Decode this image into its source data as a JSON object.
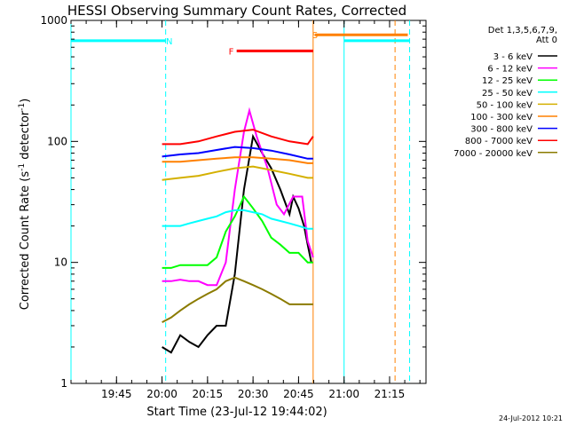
{
  "chart_data": {
    "type": "line",
    "title": "HESSI Observing Summary Count Rates, Corrected",
    "xlabel": "Start Time (23-Jul-12 19:44:02)",
    "ylabel": "Corrected Count Rate (s",
    "ylabel_sup": "-1",
    "ylabel_mid": " detector",
    "ylabel_sup2": "-1",
    "ylabel_end": ")",
    "x_unit": "minutes",
    "x_range": [
      19.5,
      21.45
    ],
    "xticks": [
      19.75,
      20.0,
      20.25,
      20.5,
      20.75,
      21.0,
      21.25
    ],
    "xtick_labels": [
      "19:45",
      "20:00",
      "20:15",
      "20:30",
      "20:45",
      "21:00",
      "21:15"
    ],
    "yscale": "log",
    "y_range": [
      1,
      1000
    ],
    "yticks": [
      1,
      10,
      100,
      1000
    ],
    "ytick_labels": [
      "1",
      "10",
      "100",
      "1000"
    ],
    "grid": false,
    "legend_header": [
      "Det 1,3,5,6,7,9,",
      "Att 0"
    ],
    "legend_position": "right",
    "series": [
      {
        "name": "3 - 6 keV",
        "color": "#000000",
        "points": [
          [
            20.0,
            2.0
          ],
          [
            20.05,
            1.8
          ],
          [
            20.1,
            2.5
          ],
          [
            20.15,
            2.2
          ],
          [
            20.2,
            2.0
          ],
          [
            20.25,
            2.5
          ],
          [
            20.3,
            3.0
          ],
          [
            20.35,
            3.0
          ],
          [
            20.4,
            8
          ],
          [
            20.45,
            40
          ],
          [
            20.5,
            110
          ],
          [
            20.55,
            80
          ],
          [
            20.6,
            60
          ],
          [
            20.65,
            40
          ],
          [
            20.7,
            25
          ],
          [
            20.72,
            35
          ],
          [
            20.75,
            28
          ],
          [
            20.78,
            20
          ],
          [
            20.8,
            14
          ],
          [
            20.82,
            10
          ]
        ]
      },
      {
        "name": "6 - 12 keV",
        "color": "#ff00ff",
        "points": [
          [
            20.0,
            7
          ],
          [
            20.05,
            7
          ],
          [
            20.1,
            7.2
          ],
          [
            20.15,
            7
          ],
          [
            20.2,
            7
          ],
          [
            20.25,
            6.5
          ],
          [
            20.3,
            6.5
          ],
          [
            20.35,
            10
          ],
          [
            20.4,
            40
          ],
          [
            20.45,
            120
          ],
          [
            20.48,
            180
          ],
          [
            20.52,
            110
          ],
          [
            20.58,
            60
          ],
          [
            20.63,
            30
          ],
          [
            20.67,
            25
          ],
          [
            20.72,
            35
          ],
          [
            20.77,
            35
          ],
          [
            20.8,
            15
          ],
          [
            20.83,
            11
          ]
        ]
      },
      {
        "name": "12 - 25 keV",
        "color": "#00ff00",
        "points": [
          [
            20.0,
            9
          ],
          [
            20.05,
            9
          ],
          [
            20.1,
            9.5
          ],
          [
            20.15,
            9.5
          ],
          [
            20.2,
            9.5
          ],
          [
            20.25,
            9.5
          ],
          [
            20.3,
            11
          ],
          [
            20.35,
            18
          ],
          [
            20.4,
            24
          ],
          [
            20.45,
            35
          ],
          [
            20.5,
            28
          ],
          [
            20.55,
            22
          ],
          [
            20.6,
            16
          ],
          [
            20.65,
            14
          ],
          [
            20.7,
            12
          ],
          [
            20.75,
            12
          ],
          [
            20.8,
            10
          ],
          [
            20.83,
            10
          ]
        ]
      },
      {
        "name": "25 - 50 keV",
        "color": "#00ffff",
        "points": [
          [
            20.0,
            20
          ],
          [
            20.05,
            20
          ],
          [
            20.1,
            20
          ],
          [
            20.15,
            21
          ],
          [
            20.2,
            22
          ],
          [
            20.25,
            23
          ],
          [
            20.3,
            24
          ],
          [
            20.35,
            26
          ],
          [
            20.4,
            27
          ],
          [
            20.45,
            27
          ],
          [
            20.5,
            26
          ],
          [
            20.55,
            25
          ],
          [
            20.6,
            23
          ],
          [
            20.65,
            22
          ],
          [
            20.7,
            21
          ],
          [
            20.75,
            20
          ],
          [
            20.8,
            19
          ],
          [
            20.83,
            19
          ]
        ]
      },
      {
        "name": "50 - 100 keV",
        "color": "#d4b000",
        "points": [
          [
            20.0,
            48
          ],
          [
            20.1,
            50
          ],
          [
            20.2,
            52
          ],
          [
            20.3,
            56
          ],
          [
            20.4,
            60
          ],
          [
            20.5,
            62
          ],
          [
            20.6,
            58
          ],
          [
            20.7,
            54
          ],
          [
            20.8,
            50
          ],
          [
            20.83,
            50
          ]
        ]
      },
      {
        "name": "100 - 300 keV",
        "color": "#ff8000",
        "points": [
          [
            20.0,
            68
          ],
          [
            20.1,
            68
          ],
          [
            20.2,
            70
          ],
          [
            20.3,
            72
          ],
          [
            20.4,
            74
          ],
          [
            20.5,
            74
          ],
          [
            20.6,
            72
          ],
          [
            20.7,
            70
          ],
          [
            20.8,
            66
          ],
          [
            20.83,
            66
          ]
        ]
      },
      {
        "name": "300 - 800 keV",
        "color": "#0000ff",
        "points": [
          [
            20.0,
            75
          ],
          [
            20.1,
            78
          ],
          [
            20.2,
            80
          ],
          [
            20.3,
            85
          ],
          [
            20.4,
            90
          ],
          [
            20.5,
            88
          ],
          [
            20.6,
            84
          ],
          [
            20.7,
            78
          ],
          [
            20.8,
            72
          ],
          [
            20.83,
            72
          ]
        ]
      },
      {
        "name": "800 - 7000 keV",
        "color": "#ff0000",
        "points": [
          [
            20.0,
            95
          ],
          [
            20.1,
            95
          ],
          [
            20.2,
            100
          ],
          [
            20.3,
            110
          ],
          [
            20.4,
            120
          ],
          [
            20.5,
            125
          ],
          [
            20.6,
            110
          ],
          [
            20.7,
            100
          ],
          [
            20.8,
            95
          ],
          [
            20.83,
            110
          ]
        ]
      },
      {
        "name": "7000 - 20000 keV",
        "color": "#8b7b00",
        "points": [
          [
            20.0,
            3.2
          ],
          [
            20.05,
            3.5
          ],
          [
            20.1,
            4
          ],
          [
            20.15,
            4.5
          ],
          [
            20.2,
            5
          ],
          [
            20.25,
            5.5
          ],
          [
            20.3,
            6
          ],
          [
            20.35,
            7
          ],
          [
            20.4,
            7.5
          ],
          [
            20.45,
            7
          ],
          [
            20.5,
            6.5
          ],
          [
            20.55,
            6
          ],
          [
            20.6,
            5.5
          ],
          [
            20.65,
            5
          ],
          [
            20.7,
            4.5
          ],
          [
            20.75,
            4.5
          ],
          [
            20.8,
            4.5
          ],
          [
            20.83,
            4.5
          ]
        ]
      }
    ],
    "annotations": [
      {
        "label": "N",
        "color": "#00ffff",
        "x": 20.04,
        "y": 680,
        "bar_from": 19.5,
        "bar_to": 20.02
      },
      {
        "label": "F",
        "color": "#ff0000",
        "x": 20.38,
        "y": 560,
        "bar_from": 20.41,
        "bar_to": 20.83
      },
      {
        "label": "S",
        "color": "#ff8000",
        "x": 20.84,
        "y": 760,
        "bar_from": 20.84,
        "bar_to": 21.35
      }
    ],
    "extra_segments": [
      {
        "color": "#00ffff",
        "x_from": 21.0,
        "x_to": 21.36,
        "y": 680
      }
    ],
    "vertical_lines": [
      {
        "x": 19.5,
        "color": "#00ffff",
        "style": "solid"
      },
      {
        "x": 20.02,
        "color": "#00ffff",
        "style": "dashed"
      },
      {
        "x": 20.83,
        "color": "#ff8000",
        "style": "solid"
      },
      {
        "x": 21.0,
        "color": "#00ffff",
        "style": "solid"
      },
      {
        "x": 21.28,
        "color": "#ff8000",
        "style": "dashed"
      },
      {
        "x": 21.36,
        "color": "#00ffff",
        "style": "dashed"
      }
    ],
    "timestamp": "24-Jul-2012 10:21"
  }
}
